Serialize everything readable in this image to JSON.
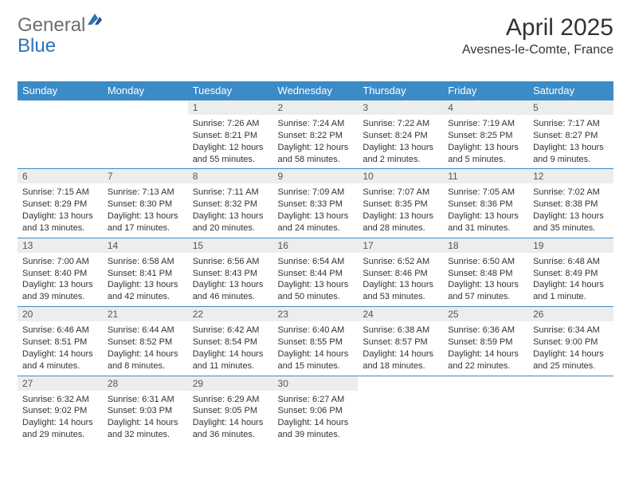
{
  "branding": {
    "logo_part1": "General",
    "logo_part2": "Blue",
    "logo_part1_color": "#6e6e6e",
    "logo_part2_color": "#2d73b6"
  },
  "title": "April 2025",
  "location": "Avesnes-le-Comte, France",
  "colors": {
    "header_bg": "#3b8bc7",
    "header_text": "#ffffff",
    "daynum_bg": "#ededed",
    "daynum_text": "#555555",
    "border": "#3b8bc7",
    "page_bg": "#ffffff",
    "body_text": "#333333"
  },
  "weekdays": [
    "Sunday",
    "Monday",
    "Tuesday",
    "Wednesday",
    "Thursday",
    "Friday",
    "Saturday"
  ],
  "weeks": [
    [
      {
        "day": "",
        "sunrise": "",
        "sunset": "",
        "daylight": ""
      },
      {
        "day": "",
        "sunrise": "",
        "sunset": "",
        "daylight": ""
      },
      {
        "day": "1",
        "sunrise": "Sunrise: 7:26 AM",
        "sunset": "Sunset: 8:21 PM",
        "daylight": "Daylight: 12 hours and 55 minutes."
      },
      {
        "day": "2",
        "sunrise": "Sunrise: 7:24 AM",
        "sunset": "Sunset: 8:22 PM",
        "daylight": "Daylight: 12 hours and 58 minutes."
      },
      {
        "day": "3",
        "sunrise": "Sunrise: 7:22 AM",
        "sunset": "Sunset: 8:24 PM",
        "daylight": "Daylight: 13 hours and 2 minutes."
      },
      {
        "day": "4",
        "sunrise": "Sunrise: 7:19 AM",
        "sunset": "Sunset: 8:25 PM",
        "daylight": "Daylight: 13 hours and 5 minutes."
      },
      {
        "day": "5",
        "sunrise": "Sunrise: 7:17 AM",
        "sunset": "Sunset: 8:27 PM",
        "daylight": "Daylight: 13 hours and 9 minutes."
      }
    ],
    [
      {
        "day": "6",
        "sunrise": "Sunrise: 7:15 AM",
        "sunset": "Sunset: 8:29 PM",
        "daylight": "Daylight: 13 hours and 13 minutes."
      },
      {
        "day": "7",
        "sunrise": "Sunrise: 7:13 AM",
        "sunset": "Sunset: 8:30 PM",
        "daylight": "Daylight: 13 hours and 17 minutes."
      },
      {
        "day": "8",
        "sunrise": "Sunrise: 7:11 AM",
        "sunset": "Sunset: 8:32 PM",
        "daylight": "Daylight: 13 hours and 20 minutes."
      },
      {
        "day": "9",
        "sunrise": "Sunrise: 7:09 AM",
        "sunset": "Sunset: 8:33 PM",
        "daylight": "Daylight: 13 hours and 24 minutes."
      },
      {
        "day": "10",
        "sunrise": "Sunrise: 7:07 AM",
        "sunset": "Sunset: 8:35 PM",
        "daylight": "Daylight: 13 hours and 28 minutes."
      },
      {
        "day": "11",
        "sunrise": "Sunrise: 7:05 AM",
        "sunset": "Sunset: 8:36 PM",
        "daylight": "Daylight: 13 hours and 31 minutes."
      },
      {
        "day": "12",
        "sunrise": "Sunrise: 7:02 AM",
        "sunset": "Sunset: 8:38 PM",
        "daylight": "Daylight: 13 hours and 35 minutes."
      }
    ],
    [
      {
        "day": "13",
        "sunrise": "Sunrise: 7:00 AM",
        "sunset": "Sunset: 8:40 PM",
        "daylight": "Daylight: 13 hours and 39 minutes."
      },
      {
        "day": "14",
        "sunrise": "Sunrise: 6:58 AM",
        "sunset": "Sunset: 8:41 PM",
        "daylight": "Daylight: 13 hours and 42 minutes."
      },
      {
        "day": "15",
        "sunrise": "Sunrise: 6:56 AM",
        "sunset": "Sunset: 8:43 PM",
        "daylight": "Daylight: 13 hours and 46 minutes."
      },
      {
        "day": "16",
        "sunrise": "Sunrise: 6:54 AM",
        "sunset": "Sunset: 8:44 PM",
        "daylight": "Daylight: 13 hours and 50 minutes."
      },
      {
        "day": "17",
        "sunrise": "Sunrise: 6:52 AM",
        "sunset": "Sunset: 8:46 PM",
        "daylight": "Daylight: 13 hours and 53 minutes."
      },
      {
        "day": "18",
        "sunrise": "Sunrise: 6:50 AM",
        "sunset": "Sunset: 8:48 PM",
        "daylight": "Daylight: 13 hours and 57 minutes."
      },
      {
        "day": "19",
        "sunrise": "Sunrise: 6:48 AM",
        "sunset": "Sunset: 8:49 PM",
        "daylight": "Daylight: 14 hours and 1 minute."
      }
    ],
    [
      {
        "day": "20",
        "sunrise": "Sunrise: 6:46 AM",
        "sunset": "Sunset: 8:51 PM",
        "daylight": "Daylight: 14 hours and 4 minutes."
      },
      {
        "day": "21",
        "sunrise": "Sunrise: 6:44 AM",
        "sunset": "Sunset: 8:52 PM",
        "daylight": "Daylight: 14 hours and 8 minutes."
      },
      {
        "day": "22",
        "sunrise": "Sunrise: 6:42 AM",
        "sunset": "Sunset: 8:54 PM",
        "daylight": "Daylight: 14 hours and 11 minutes."
      },
      {
        "day": "23",
        "sunrise": "Sunrise: 6:40 AM",
        "sunset": "Sunset: 8:55 PM",
        "daylight": "Daylight: 14 hours and 15 minutes."
      },
      {
        "day": "24",
        "sunrise": "Sunrise: 6:38 AM",
        "sunset": "Sunset: 8:57 PM",
        "daylight": "Daylight: 14 hours and 18 minutes."
      },
      {
        "day": "25",
        "sunrise": "Sunrise: 6:36 AM",
        "sunset": "Sunset: 8:59 PM",
        "daylight": "Daylight: 14 hours and 22 minutes."
      },
      {
        "day": "26",
        "sunrise": "Sunrise: 6:34 AM",
        "sunset": "Sunset: 9:00 PM",
        "daylight": "Daylight: 14 hours and 25 minutes."
      }
    ],
    [
      {
        "day": "27",
        "sunrise": "Sunrise: 6:32 AM",
        "sunset": "Sunset: 9:02 PM",
        "daylight": "Daylight: 14 hours and 29 minutes."
      },
      {
        "day": "28",
        "sunrise": "Sunrise: 6:31 AM",
        "sunset": "Sunset: 9:03 PM",
        "daylight": "Daylight: 14 hours and 32 minutes."
      },
      {
        "day": "29",
        "sunrise": "Sunrise: 6:29 AM",
        "sunset": "Sunset: 9:05 PM",
        "daylight": "Daylight: 14 hours and 36 minutes."
      },
      {
        "day": "30",
        "sunrise": "Sunrise: 6:27 AM",
        "sunset": "Sunset: 9:06 PM",
        "daylight": "Daylight: 14 hours and 39 minutes."
      },
      {
        "day": "",
        "sunrise": "",
        "sunset": "",
        "daylight": ""
      },
      {
        "day": "",
        "sunrise": "",
        "sunset": "",
        "daylight": ""
      },
      {
        "day": "",
        "sunrise": "",
        "sunset": "",
        "daylight": ""
      }
    ]
  ]
}
